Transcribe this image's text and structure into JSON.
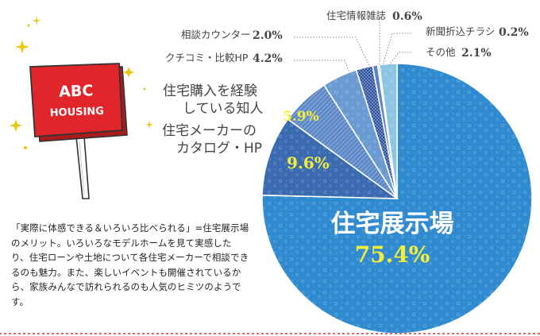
{
  "sign": {
    "line1": "ABC",
    "line2": "HOUSING"
  },
  "description": "「実際に体感できる＆いろいろ比べられる」=住宅展示場のメリット。いろいろなモデルホームを見て実感したり、住宅ローンや土地について各住宅メーカーで相談できるのも魅力。また、楽しいイベントも開催されているから、家族みんなで訪れられるのも人気のヒミツのようです。",
  "colors": {
    "main_slice": "#2f8ad0",
    "slice_2": "#3a6ab0",
    "slice_3": "#5c88c8",
    "slice_4": "#6a9ad2",
    "slice_5": "#2a4f9c",
    "slice_6": "#5a84c6",
    "slice_7": "#9ec2e4",
    "slice_8": "#8cc4e4",
    "sign_red": "#e0262a",
    "label_yellow": "#f4ee3a"
  },
  "chart_data": {
    "type": "pie",
    "slices": [
      {
        "label": "住宅展示場",
        "value": 75.4,
        "value_text": "75.4%"
      },
      {
        "label": "住宅メーカーのカタログ・HP",
        "value": 9.6,
        "value_text": "9.6%"
      },
      {
        "label": "住宅購入を経験している知人",
        "value": 5.9,
        "value_text": "5.9%"
      },
      {
        "label": "クチコミ・比較HP",
        "value": 4.2,
        "value_text": "4.2%"
      },
      {
        "label": "相談カウンター",
        "value": 2.0,
        "value_text": "2.0%"
      },
      {
        "label": "住宅情報雑誌",
        "value": 0.6,
        "value_text": "0.6%"
      },
      {
        "label": "新聞折込チラシ",
        "value": 0.2,
        "value_text": "0.2%"
      },
      {
        "label": "その他",
        "value": 2.1,
        "value_text": "2.1%"
      }
    ],
    "label_lines": {
      "knowledge": [
        "住宅購入を経験",
        "している知人"
      ],
      "catalog": [
        "住宅メーカーの",
        "カタログ・HP"
      ],
      "main": "住宅展示場"
    }
  }
}
